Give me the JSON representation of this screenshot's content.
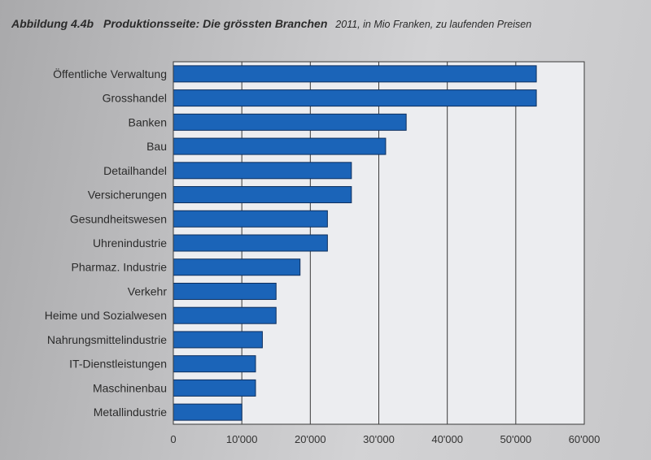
{
  "title_prefix": "Abbildung 4.4b",
  "title_main": "Produktionsseite: Die grössten Branchen",
  "title_suffix": "2011, in Mio Franken, zu laufenden Preisen",
  "chart_data": {
    "type": "bar",
    "orientation": "horizontal",
    "categories": [
      "Öffentliche Verwaltung",
      "Grosshandel",
      "Banken",
      "Bau",
      "Detailhandel",
      "Versicherungen",
      "Gesundheitswesen",
      "Uhrenindustrie",
      "Pharmaz. Industrie",
      "Verkehr",
      "Heime und Sozialwesen",
      "Nahrungsmittelindustrie",
      "IT-Dienstleistungen",
      "Maschinenbau",
      "Metallindustrie"
    ],
    "values": [
      53000,
      53000,
      34000,
      31000,
      26000,
      26000,
      22500,
      22500,
      18500,
      15000,
      15000,
      13000,
      12000,
      12000,
      10000
    ],
    "xlim": [
      0,
      60000
    ],
    "xticks": [
      0,
      10000,
      20000,
      30000,
      40000,
      50000,
      60000
    ],
    "xtick_labels": [
      "0",
      "10'000",
      "20'000",
      "30'000",
      "40'000",
      "50'000",
      "60'000"
    ],
    "grid": "vertical",
    "bar_color": "#1b64b8",
    "plot_background": "#ecedf0"
  }
}
